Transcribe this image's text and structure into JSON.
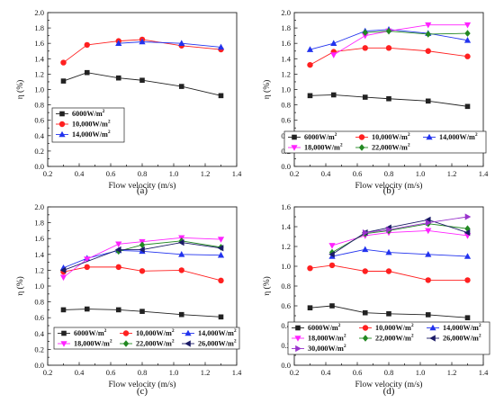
{
  "chart_data": [
    {
      "type": "line",
      "panel_label": "(a)",
      "xlabel": "Flow velocity (m/s)",
      "ylabel": "η (%)",
      "xlim": [
        0.2,
        1.4
      ],
      "ylim": [
        0.0,
        2.0
      ],
      "xticks": [
        "0.2",
        "0.4",
        "0.6",
        "0.8",
        "1.0",
        "1.2",
        "1.4"
      ],
      "yticks": [
        "0.0",
        "0.2",
        "0.4",
        "0.6",
        "0.8",
        "1.0",
        "1.2",
        "1.4",
        "1.6",
        "1.8",
        "2.0"
      ],
      "legend_position": "lower-left",
      "series": [
        {
          "name": "6000W/m²",
          "color": "#222222",
          "marker": "square",
          "x": [
            0.3,
            0.45,
            0.65,
            0.8,
            1.05,
            1.3
          ],
          "y": [
            1.11,
            1.22,
            1.15,
            1.12,
            1.04,
            0.92
          ]
        },
        {
          "name": "10,000W/m²",
          "color": "#ff2020",
          "marker": "circle",
          "x": [
            0.3,
            0.45,
            0.65,
            0.8,
            1.05,
            1.3
          ],
          "y": [
            1.35,
            1.58,
            1.63,
            1.65,
            1.57,
            1.52
          ]
        },
        {
          "name": "14,000W/m²",
          "color": "#2233ee",
          "marker": "triangle-up",
          "x": [
            0.65,
            0.8,
            1.05,
            1.3
          ],
          "y": [
            1.6,
            1.62,
            1.6,
            1.55
          ]
        }
      ]
    },
    {
      "type": "line",
      "panel_label": "(b)",
      "xlabel": "Flow velocity (m/s)",
      "ylabel": "η (%)",
      "xlim": [
        0.2,
        1.4
      ],
      "ylim": [
        0.0,
        2.0
      ],
      "xticks": [
        "0.2",
        "0.4",
        "0.6",
        "0.8",
        "1.0",
        "1.2",
        "1.4"
      ],
      "yticks": [
        "0.0",
        "0.2",
        "0.4",
        "0.6",
        "0.8",
        "1.0",
        "1.2",
        "1.4",
        "1.6",
        "1.8",
        "2.0"
      ],
      "legend_position": "bottom",
      "series": [
        {
          "name": "6000W/m²",
          "color": "#222222",
          "marker": "square",
          "x": [
            0.3,
            0.45,
            0.65,
            0.8,
            1.05,
            1.3
          ],
          "y": [
            0.92,
            0.93,
            0.9,
            0.88,
            0.85,
            0.78
          ]
        },
        {
          "name": "10,000W/m²",
          "color": "#ff2020",
          "marker": "circle",
          "x": [
            0.3,
            0.45,
            0.65,
            0.8,
            1.05,
            1.3
          ],
          "y": [
            1.32,
            1.49,
            1.54,
            1.54,
            1.5,
            1.43
          ]
        },
        {
          "name": "14,000W/m²",
          "color": "#2233ee",
          "marker": "triangle-up",
          "x": [
            0.3,
            0.45,
            0.65,
            0.8,
            1.05,
            1.3
          ],
          "y": [
            1.52,
            1.6,
            1.76,
            1.78,
            1.73,
            1.64
          ]
        },
        {
          "name": "18,000W/m²",
          "color": "#ff22ff",
          "marker": "triangle-down",
          "x": [
            0.45,
            0.65,
            0.8,
            1.05,
            1.3
          ],
          "y": [
            1.45,
            1.7,
            1.76,
            1.84,
            1.84
          ]
        },
        {
          "name": "22,000W/m²",
          "color": "#228822",
          "marker": "diamond",
          "x": [
            0.65,
            0.8,
            1.05,
            1.3
          ],
          "y": [
            1.74,
            1.76,
            1.72,
            1.73
          ]
        }
      ]
    },
    {
      "type": "line",
      "panel_label": "(c)",
      "xlabel": "Flow velocity (m/s)",
      "ylabel": "η (%)",
      "xlim": [
        0.2,
        1.4
      ],
      "ylim": [
        0.0,
        2.0
      ],
      "xticks": [
        "0.2",
        "0.4",
        "0.6",
        "0.8",
        "1.0",
        "1.2",
        "1.4"
      ],
      "yticks": [
        "0.0",
        "0.2",
        "0.4",
        "0.6",
        "0.8",
        "1.0",
        "1.2",
        "1.4",
        "1.6",
        "1.8",
        "2.0"
      ],
      "legend_position": "bottom",
      "series": [
        {
          "name": "6000W/m²",
          "color": "#222222",
          "marker": "square",
          "x": [
            0.3,
            0.45,
            0.65,
            0.8,
            1.05,
            1.3
          ],
          "y": [
            0.7,
            0.71,
            0.7,
            0.68,
            0.64,
            0.61
          ]
        },
        {
          "name": "10,000W/m²",
          "color": "#ff2020",
          "marker": "circle",
          "x": [
            0.3,
            0.45,
            0.65,
            0.8,
            1.05,
            1.3
          ],
          "y": [
            1.18,
            1.24,
            1.24,
            1.19,
            1.2,
            1.07
          ]
        },
        {
          "name": "14,000W/m²",
          "color": "#2233ee",
          "marker": "triangle-up",
          "x": [
            0.3,
            0.45,
            0.65,
            0.8,
            1.05,
            1.3
          ],
          "y": [
            1.23,
            1.35,
            1.45,
            1.44,
            1.4,
            1.39
          ]
        },
        {
          "name": "18,000W/m²",
          "color": "#ff22ff",
          "marker": "triangle-down",
          "x": [
            0.3,
            0.45,
            0.65,
            0.8,
            1.05,
            1.3
          ],
          "y": [
            1.11,
            1.34,
            1.53,
            1.56,
            1.61,
            1.59
          ]
        },
        {
          "name": "22,000W/m²",
          "color": "#228822",
          "marker": "diamond",
          "x": [
            0.65,
            0.8,
            1.05,
            1.3
          ],
          "y": [
            1.44,
            1.52,
            1.57,
            1.49
          ]
        },
        {
          "name": "26,000W/m²",
          "color": "#1a1a66",
          "marker": "triangle-left",
          "x": [
            0.3,
            0.65,
            0.8,
            1.05,
            1.3
          ],
          "y": [
            1.2,
            1.46,
            1.46,
            1.55,
            1.48
          ]
        }
      ]
    },
    {
      "type": "line",
      "panel_label": "(d)",
      "xlabel": "Flow velocity (m/s)",
      "ylabel": "η (%)",
      "xlim": [
        0.2,
        1.4
      ],
      "ylim": [
        0.0,
        1.6
      ],
      "xticks": [
        "0.2",
        "0.4",
        "0.6",
        "0.8",
        "1.0",
        "1.2",
        "1.4"
      ],
      "yticks": [
        "0.0",
        "0.2",
        "0.4",
        "0.6",
        "0.8",
        "1.0",
        "1.2",
        "1.4",
        "1.6"
      ],
      "legend_position": "bottom",
      "series": [
        {
          "name": "6000W/m²",
          "color": "#222222",
          "marker": "square",
          "x": [
            0.3,
            0.44,
            0.65,
            0.8,
            1.05,
            1.3
          ],
          "y": [
            0.58,
            0.6,
            0.53,
            0.52,
            0.51,
            0.48
          ]
        },
        {
          "name": "10,000W/m²",
          "color": "#ff2020",
          "marker": "circle",
          "x": [
            0.3,
            0.44,
            0.65,
            0.8,
            1.05,
            1.3
          ],
          "y": [
            0.98,
            1.01,
            0.95,
            0.95,
            0.86,
            0.86
          ]
        },
        {
          "name": "14,000W/m²",
          "color": "#2233ee",
          "marker": "triangle-up",
          "x": [
            0.44,
            0.65,
            0.8,
            1.05,
            1.3
          ],
          "y": [
            1.1,
            1.17,
            1.14,
            1.12,
            1.1
          ]
        },
        {
          "name": "18,000W/m²",
          "color": "#ff22ff",
          "marker": "triangle-down",
          "x": [
            0.44,
            0.65,
            0.8,
            1.05,
            1.3
          ],
          "y": [
            1.21,
            1.31,
            1.34,
            1.36,
            1.31
          ]
        },
        {
          "name": "22,000W/m²",
          "color": "#228822",
          "marker": "diamond",
          "x": [
            0.44,
            0.65,
            0.8,
            1.05,
            1.3
          ],
          "y": [
            1.14,
            1.33,
            1.36,
            1.43,
            1.38
          ]
        },
        {
          "name": "26,000W/m²",
          "color": "#1a1a66",
          "marker": "triangle-left",
          "x": [
            0.44,
            0.65,
            0.8,
            1.05,
            1.3
          ],
          "y": [
            1.12,
            1.34,
            1.39,
            1.47,
            1.34
          ]
        },
        {
          "name": "30,000W/m²",
          "color": "#9933cc",
          "marker": "triangle-right",
          "x": [
            0.65,
            0.8,
            1.05,
            1.3
          ],
          "y": [
            1.34,
            1.37,
            1.44,
            1.5
          ]
        }
      ]
    }
  ]
}
